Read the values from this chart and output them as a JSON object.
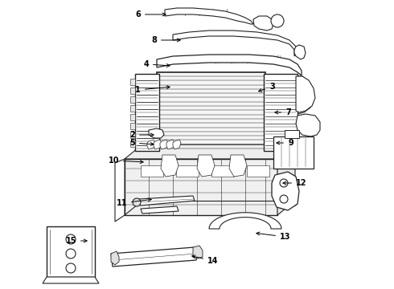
{
  "bg_color": "#ffffff",
  "lc": "#222222",
  "figsize": [
    4.9,
    3.6
  ],
  "dpi": 100,
  "label_defs": [
    [
      "6",
      175,
      18,
      210,
      18
    ],
    [
      "8",
      195,
      50,
      228,
      50
    ],
    [
      "4",
      185,
      80,
      215,
      82
    ],
    [
      "1",
      175,
      112,
      215,
      108
    ],
    [
      "3",
      335,
      108,
      318,
      115
    ],
    [
      "7",
      355,
      140,
      338,
      140
    ],
    [
      "2",
      168,
      168,
      195,
      168
    ],
    [
      "5",
      168,
      178,
      195,
      180
    ],
    [
      "9",
      358,
      178,
      340,
      178
    ],
    [
      "10",
      148,
      200,
      182,
      202
    ],
    [
      "11",
      158,
      253,
      192,
      248
    ],
    [
      "12",
      368,
      228,
      348,
      228
    ],
    [
      "13",
      348,
      295,
      315,
      290
    ],
    [
      "14",
      258,
      325,
      235,
      318
    ],
    [
      "15",
      95,
      300,
      112,
      300
    ]
  ]
}
